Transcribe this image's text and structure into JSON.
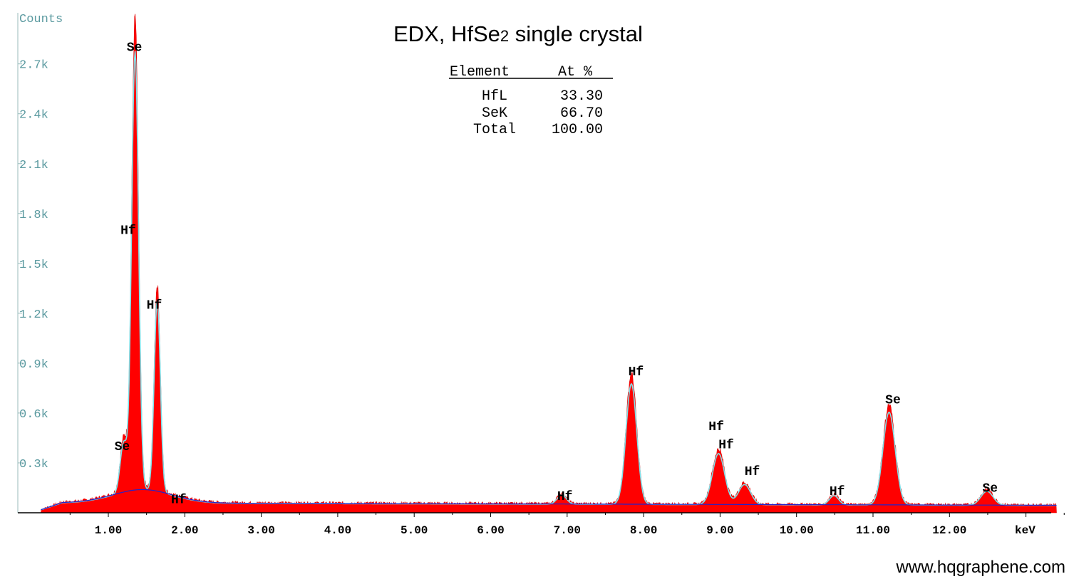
{
  "chart_data": {
    "type": "area",
    "title": "EDX, HfSe",
    "title_subscript": "2",
    "title_suffix": " single crystal",
    "ylabel": "Counts",
    "xunit_label": "keV",
    "xlim": [
      0,
      13.5
    ],
    "ylim": [
      0,
      3000
    ],
    "xticks": [
      {
        "value": 1,
        "label": "1.00"
      },
      {
        "value": 2,
        "label": "2.00"
      },
      {
        "value": 3,
        "label": "3.00"
      },
      {
        "value": 4,
        "label": "4.00"
      },
      {
        "value": 5,
        "label": "5.00"
      },
      {
        "value": 6,
        "label": "6.00"
      },
      {
        "value": 7,
        "label": "7.00"
      },
      {
        "value": 8,
        "label": "8.00"
      },
      {
        "value": 9,
        "label": "9.00"
      },
      {
        "value": 10,
        "label": "10.00"
      },
      {
        "value": 11,
        "label": "11.00"
      },
      {
        "value": 12,
        "label": "12.00"
      }
    ],
    "yticks": [
      {
        "value": 300,
        "label": "0.3k"
      },
      {
        "value": 600,
        "label": "0.6k"
      },
      {
        "value": 900,
        "label": "0.9k"
      },
      {
        "value": 1200,
        "label": "1.2k"
      },
      {
        "value": 1500,
        "label": "1.5k"
      },
      {
        "value": 1800,
        "label": "1.8k"
      },
      {
        "value": 2100,
        "label": "2.1k"
      },
      {
        "value": 2400,
        "label": "2.4k"
      },
      {
        "value": 2700,
        "label": "2.7k"
      }
    ],
    "background_counts": 60,
    "peaks": [
      {
        "energy": 1.2,
        "counts": 320,
        "width": 0.045
      },
      {
        "energy": 1.35,
        "counts": 2840,
        "width": 0.045
      },
      {
        "energy": 1.64,
        "counts": 1240,
        "width": 0.04
      },
      {
        "energy": 6.93,
        "counts": 60,
        "width": 0.06
      },
      {
        "energy": 7.84,
        "counts": 780,
        "width": 0.07
      },
      {
        "energy": 8.98,
        "counts": 330,
        "width": 0.08
      },
      {
        "energy": 9.32,
        "counts": 130,
        "width": 0.08
      },
      {
        "energy": 10.49,
        "counts": 60,
        "width": 0.06
      },
      {
        "energy": 11.21,
        "counts": 600,
        "width": 0.08
      },
      {
        "energy": 12.49,
        "counts": 90,
        "width": 0.08
      }
    ],
    "series": [
      {
        "color": "#ff0000"
      },
      {
        "color": "#80e0e8"
      },
      {
        "color": "#2222cc"
      }
    ],
    "peak_labels": [
      {
        "text": "Se",
        "energy": 1.24,
        "counts": 2820
      },
      {
        "text": "Hf",
        "energy": 1.16,
        "counts": 1720
      },
      {
        "text": "Hf",
        "energy": 1.5,
        "counts": 1270
      },
      {
        "text": "Se",
        "energy": 1.08,
        "counts": 420
      },
      {
        "text": "Hf",
        "energy": 1.82,
        "counts": 100
      },
      {
        "text": "Hf",
        "energy": 6.87,
        "counts": 120
      },
      {
        "text": "Hf",
        "energy": 7.8,
        "counts": 870
      },
      {
        "text": "Hf",
        "energy": 8.85,
        "counts": 540
      },
      {
        "text": "Hf",
        "energy": 8.98,
        "counts": 430
      },
      {
        "text": "Hf",
        "energy": 9.32,
        "counts": 270
      },
      {
        "text": "Hf",
        "energy": 10.43,
        "counts": 150
      },
      {
        "text": "Se",
        "energy": 11.16,
        "counts": 700
      },
      {
        "text": "Se",
        "energy": 12.43,
        "counts": 170
      }
    ],
    "composition_table": {
      "headers": [
        "Element",
        "At %"
      ],
      "rows": [
        {
          "element": "HfL",
          "value": "33.30"
        },
        {
          "element": "SeK",
          "value": "66.70"
        },
        {
          "element": "Total",
          "value": "100.00"
        }
      ]
    }
  },
  "footer": {
    "website": "www.hqgraphene.com"
  }
}
